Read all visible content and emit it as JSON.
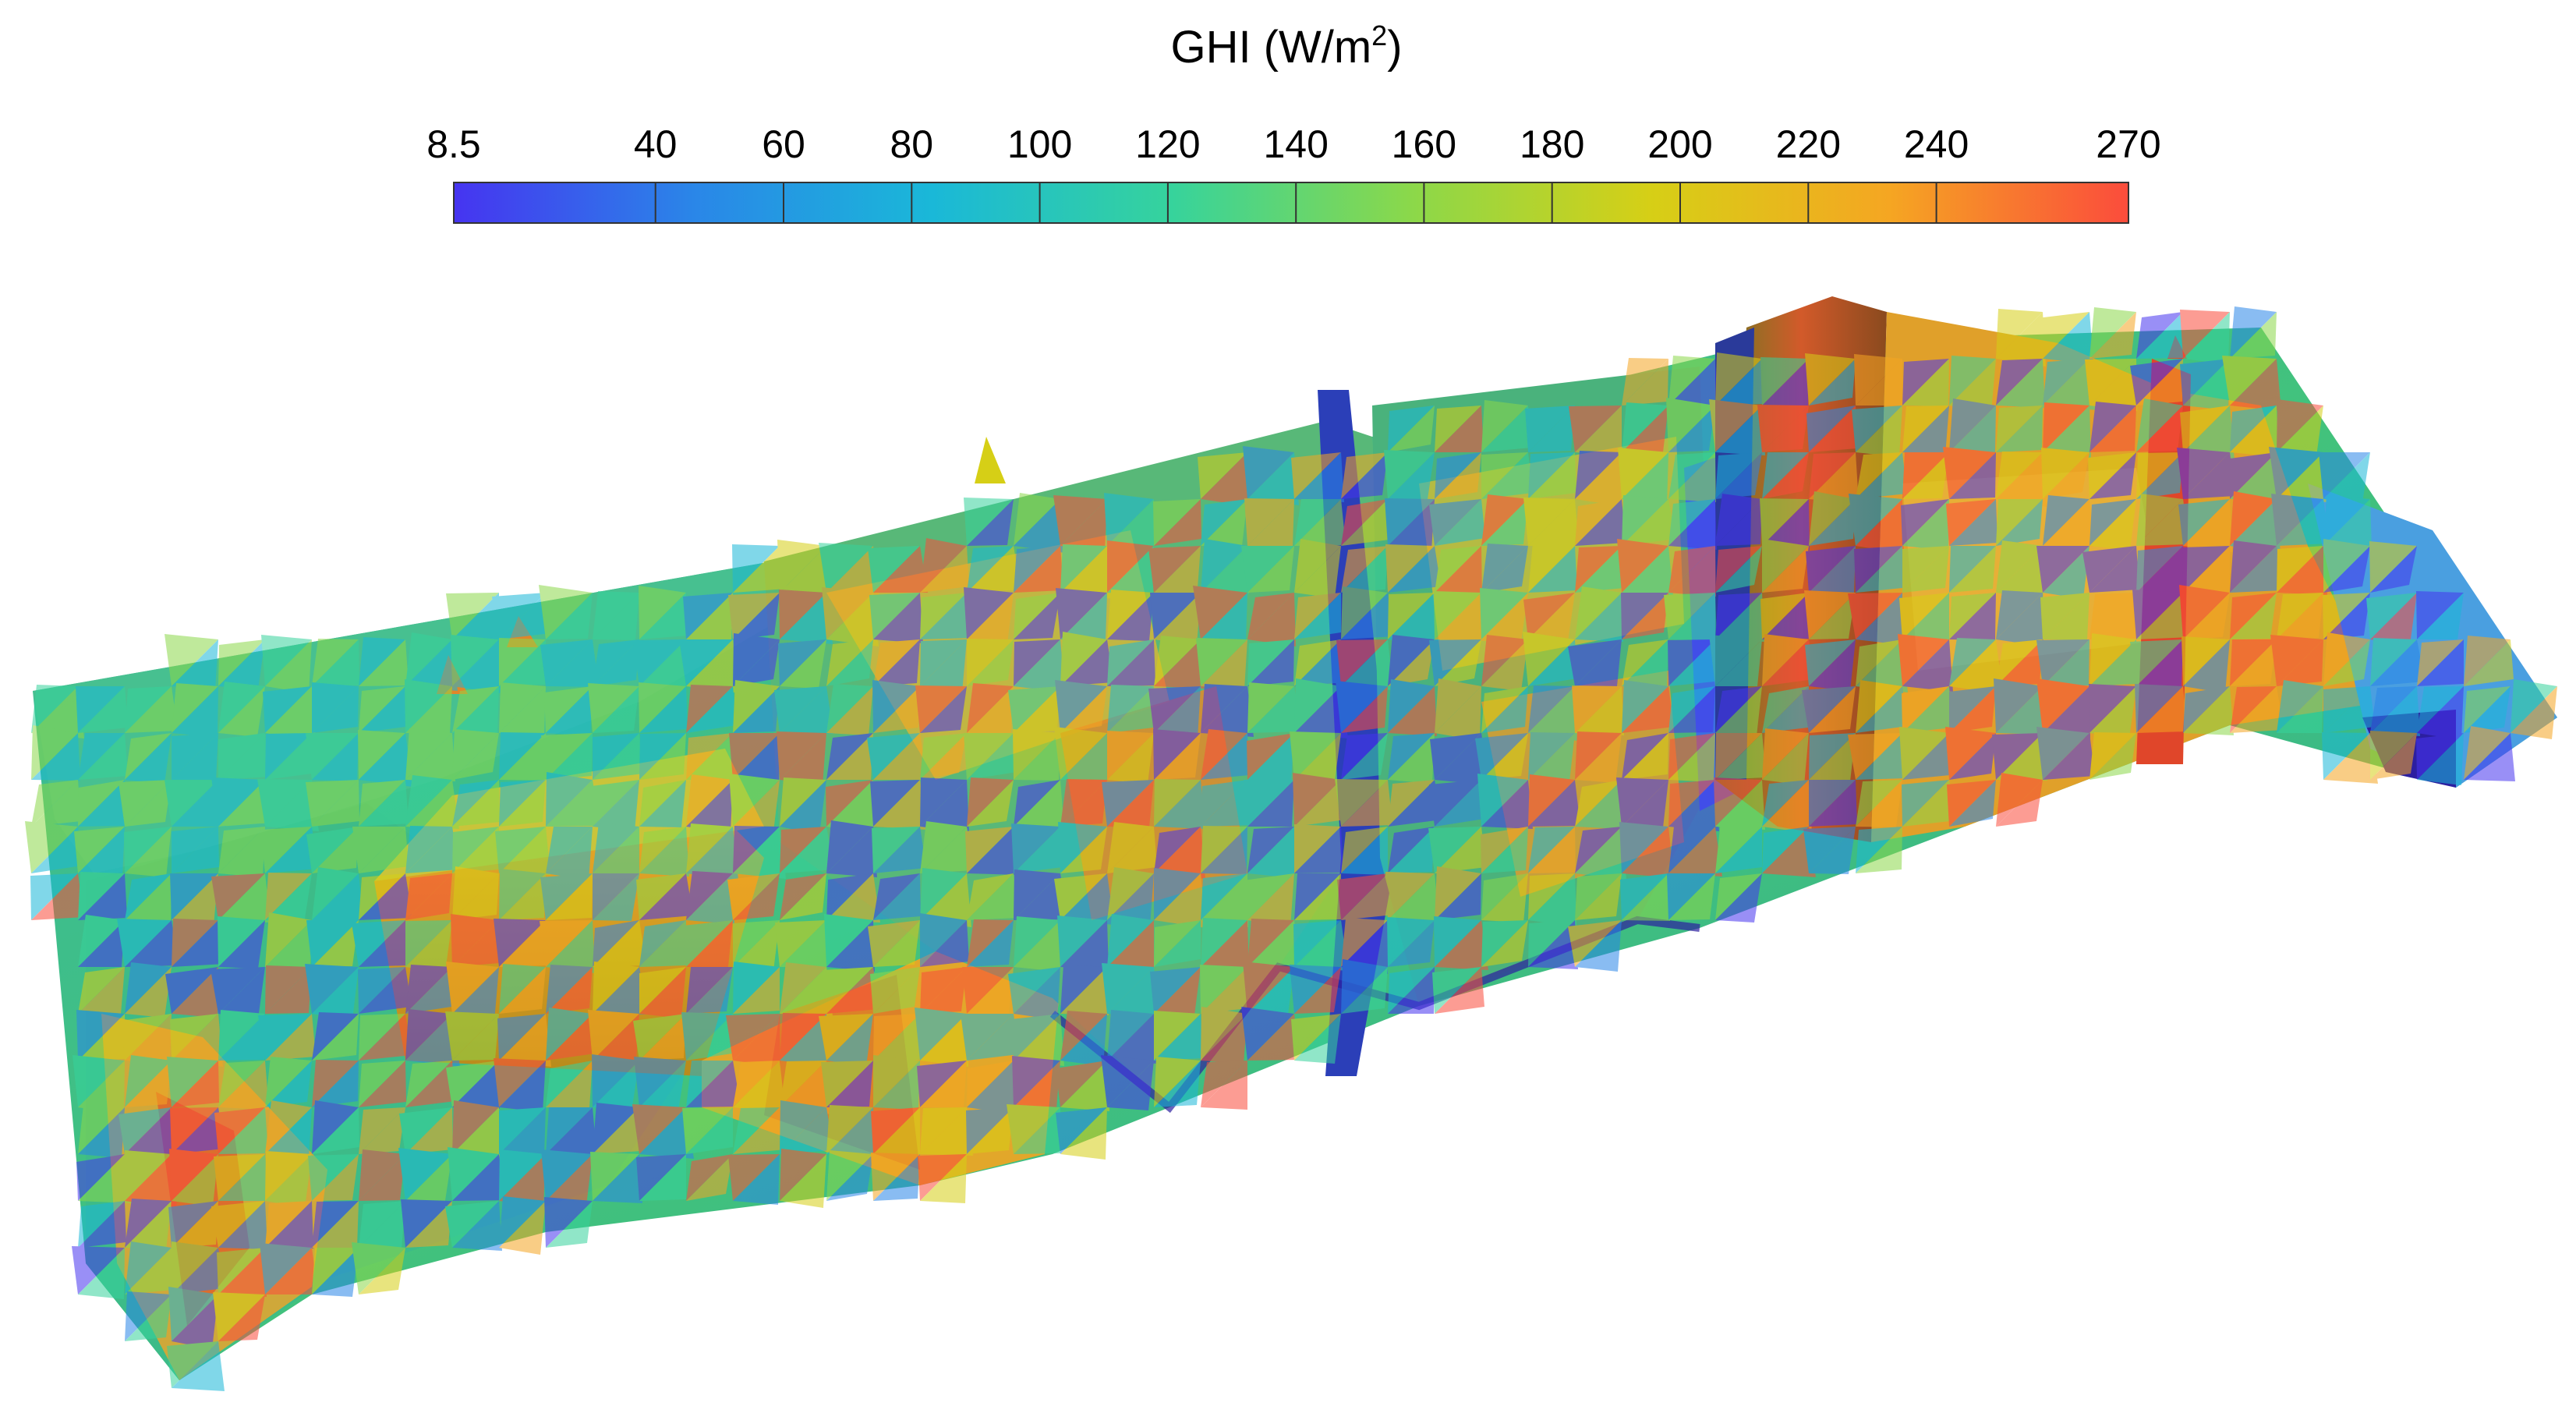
{
  "colorbar": {
    "title_main": "GHI (W/m",
    "title_sup": "2",
    "title_end": ")",
    "min": 8.5,
    "max": 270,
    "colormap": "turbo-like (blue-cyan-green-yellow-orange-red)",
    "ticks": [
      {
        "label": "8.5",
        "value": 8.5
      },
      {
        "label": "40",
        "value": 40
      },
      {
        "label": "60",
        "value": 60
      },
      {
        "label": "80",
        "value": 80
      },
      {
        "label": "100",
        "value": 100
      },
      {
        "label": "120",
        "value": 120
      },
      {
        "label": "140",
        "value": 140
      },
      {
        "label": "160",
        "value": 160
      },
      {
        "label": "180",
        "value": 180
      },
      {
        "label": "200",
        "value": 200
      },
      {
        "label": "220",
        "value": 220
      },
      {
        "label": "240",
        "value": 240
      },
      {
        "label": "270",
        "value": 270
      }
    ],
    "color_stops": [
      "#4634f0",
      "#2a86e8",
      "#1ab8d8",
      "#36d39c",
      "#8bd84a",
      "#d6cf16",
      "#f5a622",
      "#fb4c3c"
    ]
  },
  "surface": {
    "description_type": "3d-triangulated-urban-surface",
    "outline_color": "#1a2cff",
    "ground_color": "#3ec08a",
    "shadow_color": "#2c1fa0",
    "sunlit_color": "#e0a02a",
    "peak_color": "#e0462a"
  }
}
